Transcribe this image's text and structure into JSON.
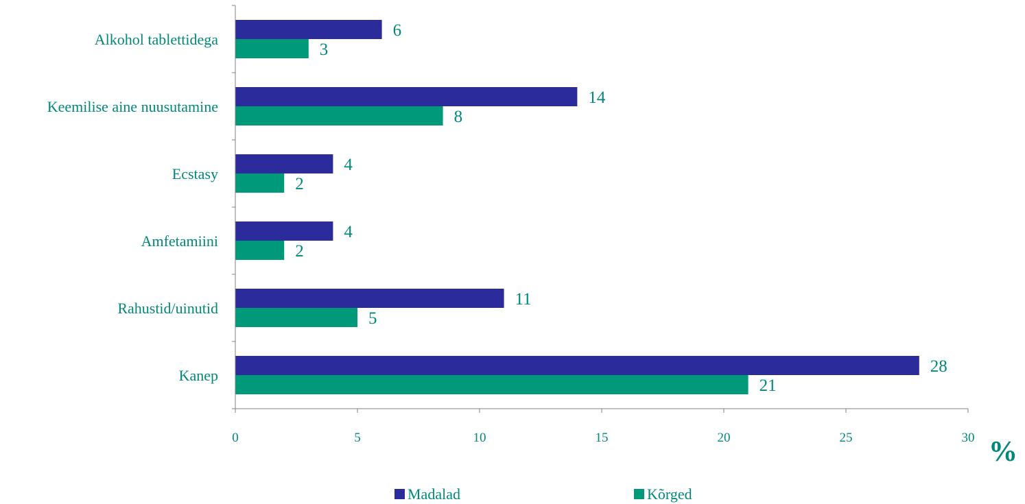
{
  "chart_data": {
    "type": "bar",
    "orientation": "horizontal",
    "categories": [
      "Alkohol tablettidega",
      "Keemilise aine nuusutamine",
      "Ecstasy",
      "Amfetamiini",
      "Rahustid/uinutid",
      "Kanep"
    ],
    "series": [
      {
        "name": "Madalad",
        "values": [
          6,
          14,
          4,
          4,
          11,
          28
        ],
        "color": "#2b2b9c"
      },
      {
        "name": "Kõrged",
        "values": [
          3,
          8.5,
          2,
          2,
          5,
          21
        ],
        "color": "#00997a"
      }
    ],
    "value_labels": {
      "Madalad": [
        "6",
        "14",
        "4",
        "4",
        "11",
        "28"
      ],
      "Kõrged": [
        "3",
        "8",
        "2",
        "2",
        "5",
        "21"
      ]
    },
    "xlim": [
      0,
      30
    ],
    "xticks": [
      0,
      5,
      10,
      15,
      20,
      25,
      30
    ],
    "xunit": "%",
    "grid": false,
    "legend_position": "bottom",
    "text_color": "#00897b",
    "axis_color": "#808080"
  }
}
